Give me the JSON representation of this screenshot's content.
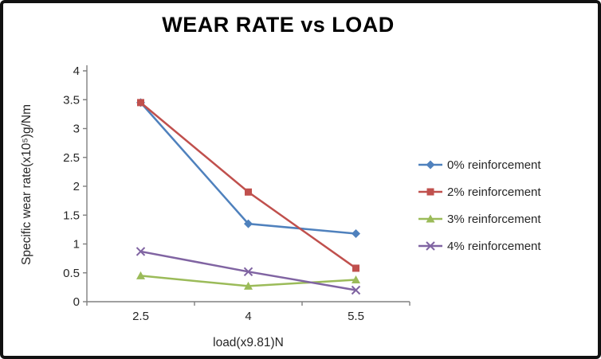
{
  "window": {
    "background_color": "#ffffff",
    "border_color": "#111111"
  },
  "chart_data": {
    "type": "line",
    "title": "WEAR RATE vs LOAD",
    "xlabel": "load(x9.81)N",
    "ylabel": "Specific wear rate(x10⁵)g/Nm",
    "categories": [
      "2.5",
      "4",
      "5.5"
    ],
    "x_values": [
      2.5,
      4,
      5.5
    ],
    "ylim": [
      0,
      4
    ],
    "yticks": [
      0,
      0.5,
      1,
      1.5,
      2,
      2.5,
      3,
      3.5,
      4
    ],
    "grid": false,
    "legend_position": "right",
    "axis_color": "#808080",
    "text_color": "#262626",
    "series": [
      {
        "name": "0% reinforcement",
        "color": "#4F81BD",
        "marker": "diamond",
        "values": [
          3.45,
          1.35,
          1.18
        ]
      },
      {
        "name": "2% reinforcement",
        "color": "#C0504D",
        "marker": "square",
        "values": [
          3.45,
          1.9,
          0.58
        ]
      },
      {
        "name": "3% reinforcement",
        "color": "#9BBB59",
        "marker": "triangle",
        "values": [
          0.45,
          0.27,
          0.38
        ]
      },
      {
        "name": "4% reinforcement",
        "color": "#8064A2",
        "marker": "x",
        "values": [
          0.87,
          0.52,
          0.2
        ]
      }
    ]
  }
}
